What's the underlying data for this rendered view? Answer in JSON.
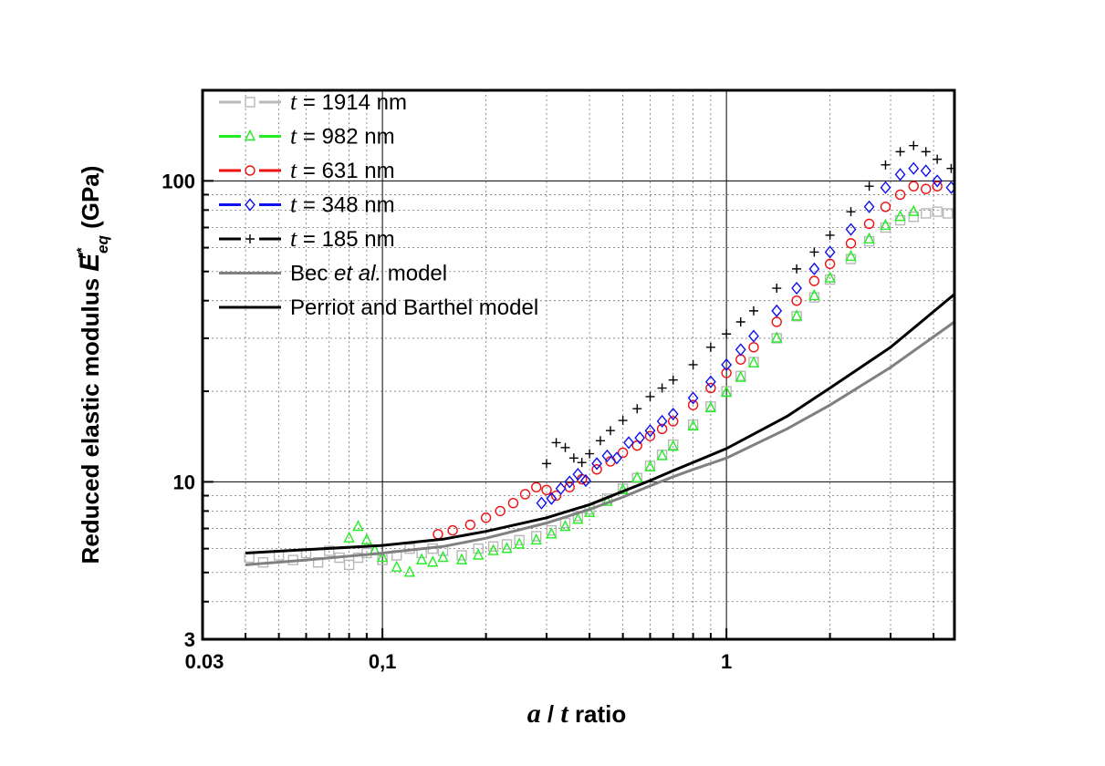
{
  "chart_data": {
    "type": "scatter",
    "xscale": "log",
    "yscale": "log",
    "xlim": [
      0.03,
      4.6
    ],
    "ylim": [
      3,
      200
    ],
    "grid": true,
    "legend_position": "top-left",
    "xlabel": {
      "italic1": "a",
      "sep": " / ",
      "italic2": "t",
      "rest": " ratio"
    },
    "ylabel": {
      "text": "Reduced elastic modulus ",
      "symbol": "E",
      "sup": "r*",
      "sub": "eq",
      "unit": " (GPa)"
    },
    "x_ticks": [
      {
        "value": 0.03,
        "label": "0.03"
      },
      {
        "value": 0.1,
        "label": "0,1"
      },
      {
        "value": 1,
        "label": "1"
      }
    ],
    "y_ticks": [
      {
        "value": 3,
        "label": "3"
      },
      {
        "value": 10,
        "label": "10"
      },
      {
        "value": 100,
        "label": "100"
      }
    ],
    "series": [
      {
        "name_t": "t",
        "name_rest": " = 1914 nm",
        "color": "#b8b8b8",
        "marker": "square",
        "points": [
          [
            0.041,
            5.6
          ],
          [
            0.045,
            5.4
          ],
          [
            0.05,
            5.7
          ],
          [
            0.055,
            5.5
          ],
          [
            0.06,
            5.8
          ],
          [
            0.065,
            5.4
          ],
          [
            0.07,
            5.9
          ],
          [
            0.075,
            5.6
          ],
          [
            0.08,
            5.3
          ],
          [
            0.085,
            5.6
          ],
          [
            0.09,
            5.8
          ],
          [
            0.1,
            5.5
          ],
          [
            0.11,
            5.7
          ],
          [
            0.12,
            6.0
          ],
          [
            0.13,
            5.8
          ],
          [
            0.14,
            6.0
          ],
          [
            0.15,
            5.9
          ],
          [
            0.17,
            5.7
          ],
          [
            0.19,
            6.0
          ],
          [
            0.21,
            6.1
          ],
          [
            0.23,
            6.2
          ],
          [
            0.25,
            6.4
          ],
          [
            0.28,
            6.6
          ],
          [
            0.31,
            6.9
          ],
          [
            0.34,
            7.3
          ],
          [
            0.37,
            7.7
          ],
          [
            0.4,
            8.1
          ],
          [
            0.45,
            8.8
          ],
          [
            0.5,
            9.5
          ],
          [
            0.55,
            10.3
          ],
          [
            0.6,
            11.3
          ],
          [
            0.65,
            12.3
          ],
          [
            0.7,
            13.3
          ],
          [
            0.8,
            15.5
          ],
          [
            0.9,
            17.8
          ],
          [
            1.0,
            20.0
          ],
          [
            1.1,
            22.5
          ],
          [
            1.2,
            25.0
          ],
          [
            1.4,
            30.0
          ],
          [
            1.6,
            35.5
          ],
          [
            1.8,
            41.0
          ],
          [
            2.0,
            47.0
          ],
          [
            2.3,
            55.0
          ],
          [
            2.6,
            63.0
          ],
          [
            2.9,
            70.0
          ],
          [
            3.2,
            74.0
          ],
          [
            3.5,
            76.0
          ],
          [
            3.8,
            78.0
          ],
          [
            4.1,
            79.0
          ],
          [
            4.4,
            78.0
          ]
        ]
      },
      {
        "name_t": "t",
        "name_rest": " = 982 nm",
        "color": "#22ee22",
        "marker": "triangle",
        "points": [
          [
            0.08,
            6.5
          ],
          [
            0.085,
            7.1
          ],
          [
            0.09,
            6.4
          ],
          [
            0.095,
            5.9
          ],
          [
            0.1,
            5.6
          ],
          [
            0.11,
            5.2
          ],
          [
            0.12,
            5.0
          ],
          [
            0.13,
            5.5
          ],
          [
            0.14,
            5.4
          ],
          [
            0.15,
            5.6
          ],
          [
            0.17,
            5.5
          ],
          [
            0.19,
            5.7
          ],
          [
            0.21,
            5.9
          ],
          [
            0.23,
            6.0
          ],
          [
            0.25,
            6.2
          ],
          [
            0.28,
            6.4
          ],
          [
            0.31,
            6.7
          ],
          [
            0.34,
            7.1
          ],
          [
            0.37,
            7.5
          ],
          [
            0.4,
            7.9
          ],
          [
            0.45,
            8.6
          ],
          [
            0.5,
            9.4
          ],
          [
            0.55,
            10.3
          ],
          [
            0.6,
            11.2
          ],
          [
            0.65,
            12.2
          ],
          [
            0.7,
            13.1
          ],
          [
            0.8,
            15.3
          ],
          [
            0.9,
            17.6
          ],
          [
            1.0,
            19.8
          ],
          [
            1.1,
            22.2
          ],
          [
            1.2,
            24.8
          ],
          [
            1.4,
            30.0
          ],
          [
            1.6,
            35.5
          ],
          [
            1.8,
            41.5
          ],
          [
            2.0,
            47.5
          ],
          [
            2.3,
            56.0
          ],
          [
            2.6,
            64.0
          ],
          [
            2.9,
            71.0
          ],
          [
            3.2,
            76.0
          ],
          [
            3.5,
            79.0
          ]
        ]
      },
      {
        "name_t": "t",
        "name_rest": " = 631 nm",
        "color": "#ee1111",
        "marker": "circle",
        "points": [
          [
            0.145,
            6.7
          ],
          [
            0.16,
            6.9
          ],
          [
            0.18,
            7.2
          ],
          [
            0.2,
            7.6
          ],
          [
            0.22,
            8.0
          ],
          [
            0.24,
            8.5
          ],
          [
            0.26,
            9.1
          ],
          [
            0.28,
            9.6
          ],
          [
            0.3,
            9.4
          ],
          [
            0.32,
            9.0
          ],
          [
            0.35,
            9.6
          ],
          [
            0.38,
            10.2
          ],
          [
            0.42,
            11.0
          ],
          [
            0.46,
            11.7
          ],
          [
            0.5,
            12.5
          ],
          [
            0.55,
            13.2
          ],
          [
            0.6,
            14.2
          ],
          [
            0.65,
            15.0
          ],
          [
            0.7,
            15.9
          ],
          [
            0.8,
            18.0
          ],
          [
            0.9,
            20.5
          ],
          [
            1.0,
            23.0
          ],
          [
            1.1,
            25.5
          ],
          [
            1.2,
            28.0
          ],
          [
            1.4,
            34.0
          ],
          [
            1.6,
            40.0
          ],
          [
            1.8,
            46.5
          ],
          [
            2.0,
            53.0
          ],
          [
            2.3,
            62.0
          ],
          [
            2.6,
            72.0
          ],
          [
            2.9,
            82.0
          ],
          [
            3.2,
            90.0
          ],
          [
            3.5,
            96.0
          ],
          [
            3.8,
            94.0
          ],
          [
            4.1,
            96.0
          ]
        ]
      },
      {
        "name_t": "t",
        "name_rest": " = 348 nm",
        "color": "#1010ee",
        "marker": "diamond",
        "points": [
          [
            0.29,
            8.5
          ],
          [
            0.31,
            8.8
          ],
          [
            0.33,
            9.5
          ],
          [
            0.35,
            10.0
          ],
          [
            0.37,
            10.6
          ],
          [
            0.39,
            10.1
          ],
          [
            0.42,
            11.5
          ],
          [
            0.45,
            12.2
          ],
          [
            0.48,
            12.0
          ],
          [
            0.52,
            13.5
          ],
          [
            0.56,
            14.0
          ],
          [
            0.6,
            14.8
          ],
          [
            0.65,
            15.9
          ],
          [
            0.7,
            16.8
          ],
          [
            0.8,
            19.0
          ],
          [
            0.9,
            21.5
          ],
          [
            1.0,
            24.5
          ],
          [
            1.1,
            27.5
          ],
          [
            1.2,
            30.5
          ],
          [
            1.4,
            37.0
          ],
          [
            1.6,
            44.0
          ],
          [
            1.8,
            51.0
          ],
          [
            2.0,
            58.0
          ],
          [
            2.3,
            69.0
          ],
          [
            2.6,
            82.0
          ],
          [
            2.9,
            95.0
          ],
          [
            3.2,
            105.0
          ],
          [
            3.5,
            110.0
          ],
          [
            3.8,
            108.0
          ],
          [
            4.1,
            100.0
          ],
          [
            4.5,
            95.0
          ]
        ]
      },
      {
        "name_t": "t",
        "name_rest": " = 185 nm",
        "color": "#000000",
        "marker": "plus",
        "points": [
          [
            0.3,
            11.5
          ],
          [
            0.32,
            13.5
          ],
          [
            0.34,
            13.0
          ],
          [
            0.36,
            12.0
          ],
          [
            0.38,
            11.6
          ],
          [
            0.4,
            12.4
          ],
          [
            0.43,
            13.7
          ],
          [
            0.46,
            14.8
          ],
          [
            0.5,
            16.0
          ],
          [
            0.55,
            17.5
          ],
          [
            0.6,
            19.2
          ],
          [
            0.65,
            20.5
          ],
          [
            0.7,
            21.8
          ],
          [
            0.8,
            24.5
          ],
          [
            0.9,
            28.0
          ],
          [
            1.0,
            31.0
          ],
          [
            1.1,
            34.0
          ],
          [
            1.2,
            37.0
          ],
          [
            1.4,
            44.0
          ],
          [
            1.6,
            51.0
          ],
          [
            1.8,
            58.0
          ],
          [
            2.0,
            66.0
          ],
          [
            2.3,
            79.0
          ],
          [
            2.6,
            96.0
          ],
          [
            2.9,
            113.0
          ],
          [
            3.2,
            125.0
          ],
          [
            3.5,
            131.0
          ],
          [
            3.8,
            125.0
          ],
          [
            4.1,
            118.0
          ],
          [
            4.5,
            110.0
          ]
        ]
      },
      {
        "name_plain": "Bec ",
        "name_italic": "et al.",
        "name_rest": " model",
        "color": "#808080",
        "marker": "none",
        "points": [
          [
            0.04,
            5.3
          ],
          [
            0.06,
            5.5
          ],
          [
            0.1,
            5.8
          ],
          [
            0.15,
            6.1
          ],
          [
            0.2,
            6.5
          ],
          [
            0.3,
            7.3
          ],
          [
            0.4,
            8.1
          ],
          [
            0.5,
            8.9
          ],
          [
            0.6,
            9.7
          ],
          [
            0.7,
            10.4
          ],
          [
            0.8,
            11.0
          ],
          [
            1.0,
            12.0
          ],
          [
            1.5,
            15.0
          ],
          [
            2.0,
            18.0
          ],
          [
            3.0,
            24.0
          ],
          [
            4.6,
            34.0
          ]
        ]
      },
      {
        "name_plain": "Perriot and Barthel model",
        "color": "#000000",
        "marker": "none",
        "points": [
          [
            0.04,
            5.8
          ],
          [
            0.06,
            5.95
          ],
          [
            0.1,
            6.15
          ],
          [
            0.15,
            6.45
          ],
          [
            0.2,
            6.85
          ],
          [
            0.3,
            7.6
          ],
          [
            0.4,
            8.4
          ],
          [
            0.5,
            9.3
          ],
          [
            0.6,
            10.1
          ],
          [
            0.7,
            10.9
          ],
          [
            0.8,
            11.6
          ],
          [
            1.0,
            12.9
          ],
          [
            1.5,
            16.5
          ],
          [
            2.0,
            20.5
          ],
          [
            3.0,
            28.0
          ],
          [
            4.6,
            42.0
          ]
        ]
      }
    ]
  }
}
